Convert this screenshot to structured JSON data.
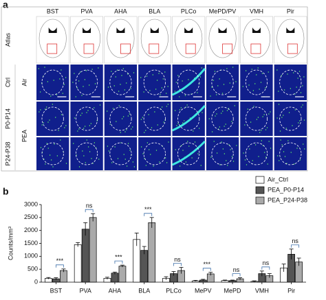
{
  "panel_a": {
    "label": "a",
    "columns": [
      "BST",
      "PVA",
      "AHA",
      "BLA",
      "PLCo",
      "MePD/PV",
      "VMH",
      "Pir"
    ],
    "row_labels": {
      "atlas": "Atlas",
      "ctrl": "Ctrl",
      "air": "Air",
      "p0": "P0-P14",
      "p24": "P24-P38",
      "pea": "PEA"
    }
  },
  "chart_data": {
    "type": "bar",
    "label": "b",
    "y_label": "Counts/mm³",
    "categories": [
      "BST",
      "PVA",
      "AHA",
      "BLA",
      "PLCo",
      "MePV",
      "MePD",
      "VMH",
      "Pir"
    ],
    "series": [
      {
        "name": "Air_Ctrl",
        "color": "#ffffff",
        "values": [
          150,
          1450,
          150,
          1650,
          150,
          50,
          60,
          30,
          550
        ],
        "errors": [
          30,
          80,
          40,
          250,
          60,
          20,
          20,
          20,
          150
        ]
      },
      {
        "name": "PEA_P0-P14",
        "color": "#555555",
        "values": [
          130,
          2050,
          350,
          1230,
          330,
          80,
          60,
          330,
          1080
        ],
        "errors": [
          40,
          250,
          40,
          150,
          80,
          30,
          20,
          100,
          200
        ]
      },
      {
        "name": "PEA_P24-P38",
        "color": "#aaaaaa",
        "values": [
          450,
          2500,
          620,
          2300,
          450,
          320,
          130,
          250,
          780
        ],
        "errors": [
          60,
          150,
          40,
          200,
          120,
          60,
          40,
          80,
          150
        ]
      }
    ],
    "annotations": [
      "***",
      "ns",
      "***",
      "***",
      "ns",
      "***",
      "ns",
      "ns",
      "ns"
    ],
    "ylim": [
      0,
      3000
    ],
    "yticks": [
      0,
      500,
      1000,
      1500,
      2000,
      2500,
      3000
    ],
    "legend": "top-right"
  }
}
